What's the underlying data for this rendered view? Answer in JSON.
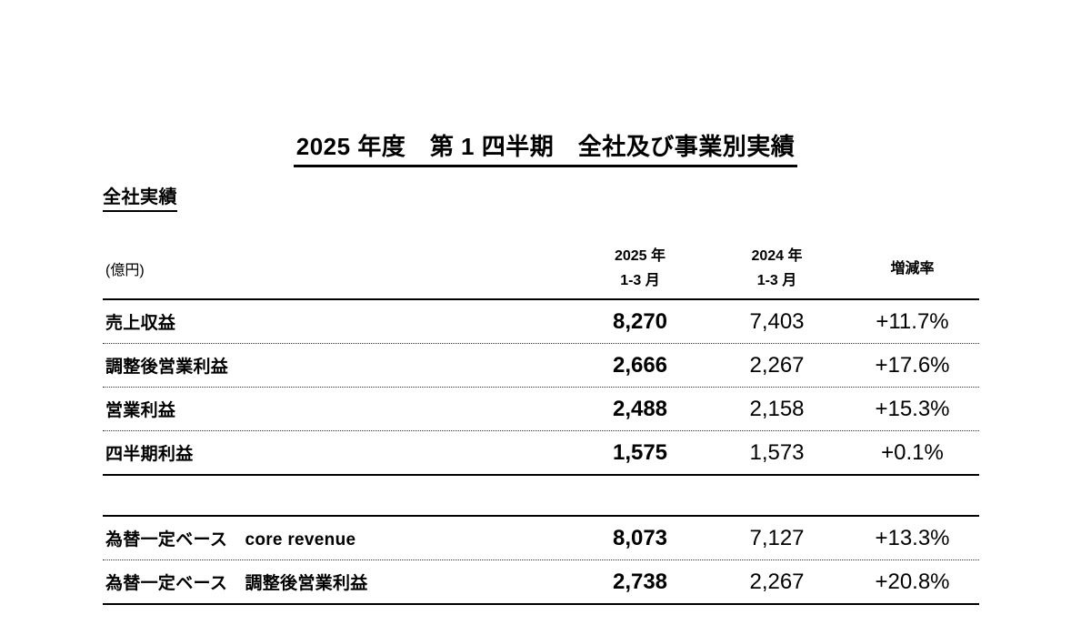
{
  "page": {
    "title": "2025 年度　第 1 四半期　全社及び事業別実績",
    "section_heading": "全社実績"
  },
  "table": {
    "unit_label": "(億円)",
    "columns": [
      {
        "line1": "2025 年",
        "line2": "1-3 月"
      },
      {
        "line1": "2024 年",
        "line2": "1-3 月"
      },
      {
        "line1": "増減率",
        "line2": ""
      }
    ],
    "rows_main": [
      {
        "label": "売上収益",
        "fy2025": "8,270",
        "fy2024": "7,403",
        "change": "+11.7%"
      },
      {
        "label": "調整後営業利益",
        "fy2025": "2,666",
        "fy2024": "2,267",
        "change": "+17.6%"
      },
      {
        "label": "営業利益",
        "fy2025": "2,488",
        "fy2024": "2,158",
        "change": "+15.3%"
      },
      {
        "label": "四半期利益",
        "fy2025": "1,575",
        "fy2024": "1,573",
        "change": "+0.1%"
      }
    ],
    "rows_constant_currency": [
      {
        "label": "為替一定ベース　core revenue",
        "fy2025": "8,073",
        "fy2024": "7,127",
        "change": "+13.3%"
      },
      {
        "label": "為替一定ベース　調整後営業利益",
        "fy2025": "2,738",
        "fy2024": "2,267",
        "change": "+20.8%"
      }
    ]
  }
}
